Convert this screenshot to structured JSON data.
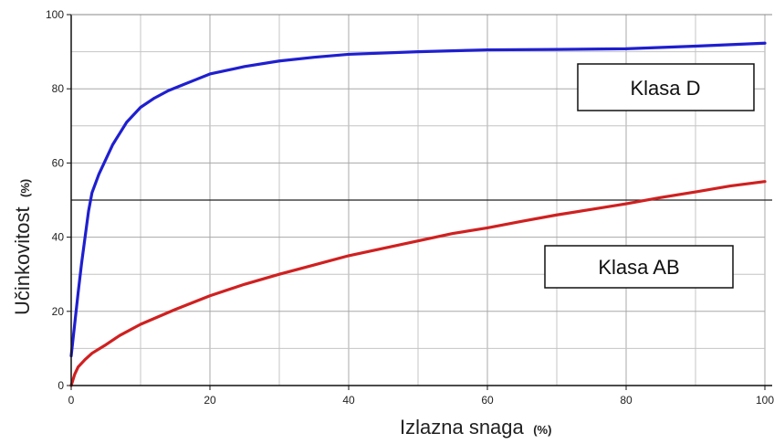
{
  "chart_data": {
    "type": "line",
    "xlabel": "Izlazna snaga",
    "xlabel_unit": "(%)",
    "ylabel": "Učinkovitost",
    "ylabel_unit": "(%)",
    "xlim": [
      0,
      100
    ],
    "ylim": [
      0,
      100
    ],
    "x_ticks": [
      0,
      20,
      40,
      60,
      80,
      100
    ],
    "y_ticks": [
      0,
      20,
      40,
      60,
      80,
      100
    ],
    "grid": true,
    "reference_line": {
      "y": 50
    },
    "series": [
      {
        "name": "Klasa D",
        "color": "#1f1fd0",
        "points": [
          [
            0,
            8
          ],
          [
            1,
            25
          ],
          [
            1.5,
            33
          ],
          [
            2,
            40
          ],
          [
            2.5,
            47
          ],
          [
            3,
            52
          ],
          [
            4,
            57
          ],
          [
            5,
            61
          ],
          [
            6,
            65
          ],
          [
            7,
            68
          ],
          [
            8,
            71
          ],
          [
            10,
            75
          ],
          [
            12,
            77.5
          ],
          [
            14,
            79.5
          ],
          [
            16,
            81
          ],
          [
            18,
            82.5
          ],
          [
            20,
            84
          ],
          [
            25,
            86
          ],
          [
            30,
            87.5
          ],
          [
            35,
            88.5
          ],
          [
            40,
            89.3
          ],
          [
            50,
            90
          ],
          [
            60,
            90.5
          ],
          [
            70,
            90.6
          ],
          [
            80,
            90.8
          ],
          [
            90,
            91.5
          ],
          [
            100,
            92.3
          ]
        ]
      },
      {
        "name": "Klasa AB",
        "color": "#d02020",
        "points": [
          [
            0,
            0
          ],
          [
            0.5,
            3
          ],
          [
            1,
            5
          ],
          [
            2,
            7
          ],
          [
            3,
            8.7
          ],
          [
            5,
            11
          ],
          [
            7,
            13.5
          ],
          [
            10,
            16.5
          ],
          [
            15,
            20.5
          ],
          [
            20,
            24.2
          ],
          [
            25,
            27.3
          ],
          [
            30,
            30
          ],
          [
            35,
            32.5
          ],
          [
            40,
            35
          ],
          [
            45,
            37
          ],
          [
            50,
            39
          ],
          [
            55,
            41
          ],
          [
            60,
            42.5
          ],
          [
            65,
            44.3
          ],
          [
            70,
            46
          ],
          [
            75,
            47.5
          ],
          [
            80,
            49
          ],
          [
            85,
            50.7
          ],
          [
            90,
            52.2
          ],
          [
            95,
            53.8
          ],
          [
            100,
            55
          ]
        ]
      }
    ],
    "legend_labels": [
      {
        "series": "Klasa D",
        "position": "upper-right"
      },
      {
        "series": "Klasa AB",
        "position": "middle-right"
      }
    ]
  }
}
